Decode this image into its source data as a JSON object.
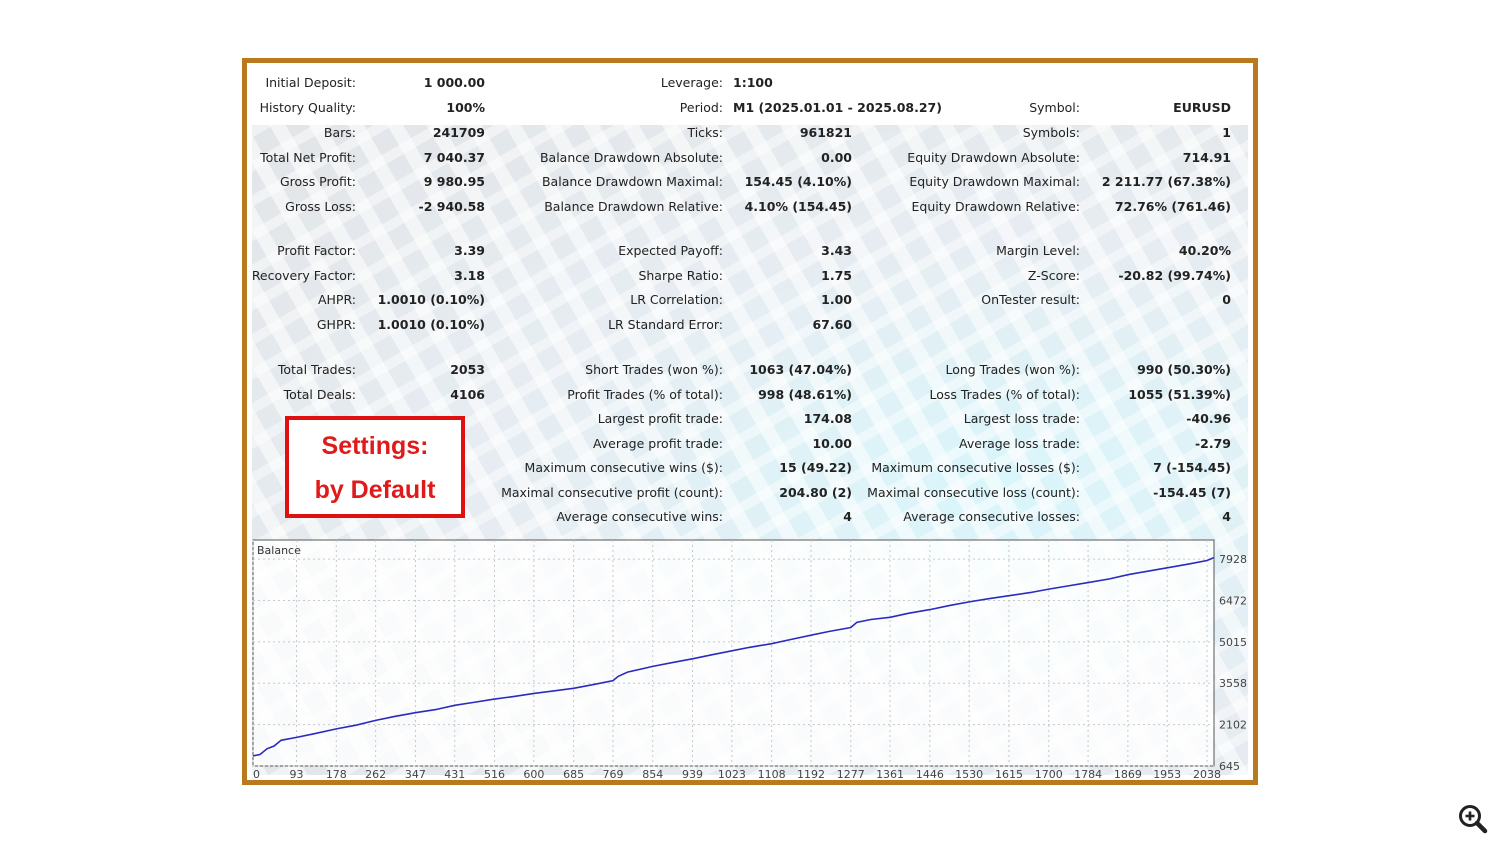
{
  "header": {
    "rows": [
      {
        "label": "Initial Deposit:",
        "value": "1 000.00"
      },
      {
        "label": "History Quality:",
        "value": "100%"
      }
    ],
    "leverage": {
      "label": "Leverage:",
      "value": "1:100"
    },
    "period": {
      "label": "Period:",
      "value": "M1 (2025.01.01 - 2025.08.27)"
    },
    "symbol": {
      "label": "Symbol:",
      "value": "EURUSD"
    }
  },
  "stats": {
    "col1": [
      {
        "label": "Bars:",
        "value": "241709"
      },
      {
        "label": "Total Net Profit:",
        "value": "7 040.37"
      },
      {
        "label": "Gross Profit:",
        "value": "9 980.95"
      },
      {
        "label": "Gross Loss:",
        "value": "-2 940.58"
      },
      {
        "label": "Profit Factor:",
        "value": "3.39"
      },
      {
        "label": "Recovery Factor:",
        "value": "3.18"
      },
      {
        "label": "AHPR:",
        "value": "1.0010 (0.10%)"
      },
      {
        "label": "GHPR:",
        "value": "1.0010 (0.10%)"
      },
      {
        "label": "Total Trades:",
        "value": "2053"
      },
      {
        "label": "Total Deals:",
        "value": "4106"
      }
    ],
    "col2": [
      {
        "label": "Ticks:",
        "value": "961821"
      },
      {
        "label": "Balance Drawdown Absolute:",
        "value": "0.00"
      },
      {
        "label": "Balance Drawdown Maximal:",
        "value": "154.45 (4.10%)"
      },
      {
        "label": "Balance Drawdown Relative:",
        "value": "4.10% (154.45)"
      },
      {
        "label": "Expected Payoff:",
        "value": "3.43"
      },
      {
        "label": "Sharpe Ratio:",
        "value": "1.75"
      },
      {
        "label": "LR Correlation:",
        "value": "1.00"
      },
      {
        "label": "LR Standard Error:",
        "value": "67.60"
      },
      {
        "label": "Short Trades (won %):",
        "value": "1063 (47.04%)"
      },
      {
        "label": "Profit Trades (% of total):",
        "value": "998 (48.61%)"
      },
      {
        "label": "Largest profit trade:",
        "value": "174.08"
      },
      {
        "label": "Average profit trade:",
        "value": "10.00"
      },
      {
        "label": "Maximum consecutive wins ($):",
        "value": "15 (49.22)"
      },
      {
        "label": "Maximal consecutive profit (count):",
        "value": "204.80 (2)"
      },
      {
        "label": "Average consecutive wins:",
        "value": "4"
      }
    ],
    "col3": [
      {
        "label": "Symbols:",
        "value": "1"
      },
      {
        "label": "Equity Drawdown Absolute:",
        "value": "714.91"
      },
      {
        "label": "Equity Drawdown Maximal:",
        "value": "2 211.77 (67.38%)"
      },
      {
        "label": "Equity Drawdown Relative:",
        "value": "72.76% (761.46)"
      },
      {
        "label": "Margin Level:",
        "value": "40.20%"
      },
      {
        "label": "Z-Score:",
        "value": "-20.82 (99.74%)"
      },
      {
        "label": "OnTester result:",
        "value": "0"
      },
      {
        "label": "Long Trades (won %):",
        "value": "990 (50.30%)"
      },
      {
        "label": "Loss Trades (% of total):",
        "value": "1055 (51.39%)"
      },
      {
        "label": "Largest loss trade:",
        "value": "-40.96"
      },
      {
        "label": "Average loss trade:",
        "value": "-2.79"
      },
      {
        "label": "Maximum consecutive losses ($):",
        "value": "7 (-154.45)"
      },
      {
        "label": "Maximal consecutive loss (count):",
        "value": "-154.45 (7)"
      },
      {
        "label": "Average consecutive losses:",
        "value": "4"
      }
    ]
  },
  "settings_note": {
    "line1": "Settings:",
    "line2": "by Default"
  },
  "colors": {
    "frame": "#b87a1c",
    "note_red": "#e01010",
    "balance_line": "#2b2bbf"
  },
  "icons": {
    "zoom": "zoom-in-icon"
  },
  "chart_data": {
    "type": "line",
    "title": "Balance",
    "xlabel": "",
    "ylabel": "",
    "x_ticks": [
      0,
      93,
      178,
      262,
      347,
      431,
      516,
      600,
      685,
      769,
      854,
      939,
      1023,
      1108,
      1192,
      1277,
      1361,
      1446,
      1530,
      1615,
      1700,
      1784,
      1869,
      1953,
      2038
    ],
    "y_ticks": [
      645,
      2102,
      3558,
      5015,
      6472,
      7928
    ],
    "xlim": [
      0,
      2053
    ],
    "ylim": [
      645,
      8600
    ],
    "grid": true,
    "series": [
      {
        "x": [
          0,
          15,
          30,
          45,
          60,
          93,
          130,
          178,
          220,
          262,
          300,
          347,
          390,
          431,
          470,
          516,
          560,
          600,
          640,
          685,
          730,
          769,
          780,
          800,
          854,
          900,
          939,
          980,
          1023,
          1060,
          1108,
          1150,
          1192,
          1230,
          1277,
          1290,
          1320,
          1361,
          1400,
          1446,
          1490,
          1530,
          1570,
          1615,
          1660,
          1700,
          1740,
          1784,
          1830,
          1869,
          1910,
          1953,
          2000,
          2038,
          2053
        ],
        "y": [
          1000,
          1050,
          1250,
          1350,
          1550,
          1650,
          1780,
          1950,
          2080,
          2250,
          2380,
          2520,
          2630,
          2780,
          2880,
          3000,
          3100,
          3200,
          3280,
          3380,
          3520,
          3650,
          3800,
          3950,
          4150,
          4300,
          4420,
          4560,
          4700,
          4820,
          4950,
          5100,
          5250,
          5380,
          5520,
          5700,
          5800,
          5880,
          6020,
          6150,
          6300,
          6420,
          6530,
          6640,
          6750,
          6870,
          6980,
          7100,
          7230,
          7380,
          7500,
          7620,
          7760,
          7880,
          7980
        ]
      }
    ]
  }
}
